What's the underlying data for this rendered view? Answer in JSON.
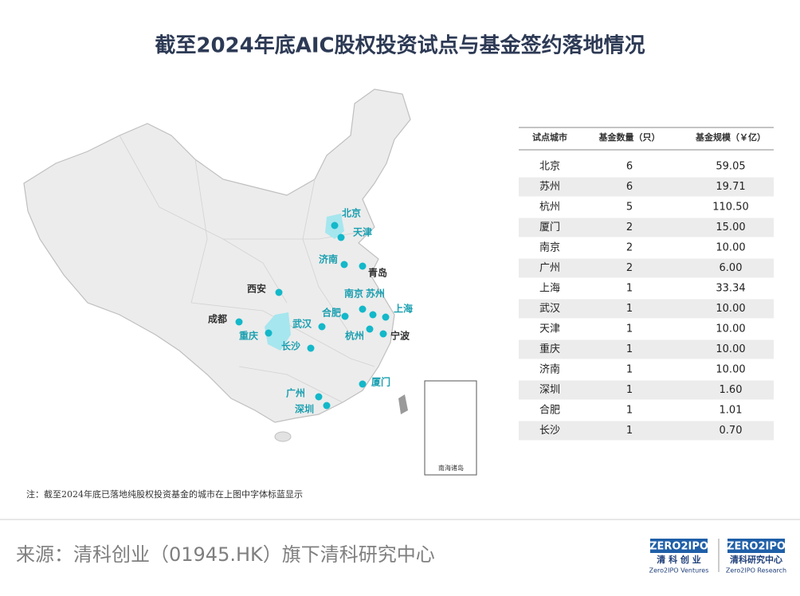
{
  "header": {
    "title": "截至2024年底AIC股权投资试点与基金签约落地情况"
  },
  "map": {
    "cities": [
      {
        "label": "北京",
        "highlight": true
      },
      {
        "label": "天津",
        "highlight": true
      },
      {
        "label": "济南",
        "highlight": true
      },
      {
        "label": "青岛",
        "highlight": false
      },
      {
        "label": "西安",
        "highlight": false
      },
      {
        "label": "南京",
        "highlight": true
      },
      {
        "label": "苏州",
        "highlight": true
      },
      {
        "label": "上海",
        "highlight": true
      },
      {
        "label": "合肥",
        "highlight": true
      },
      {
        "label": "成都",
        "highlight": false
      },
      {
        "label": "武汉",
        "highlight": true
      },
      {
        "label": "重庆",
        "highlight": true
      },
      {
        "label": "长沙",
        "highlight": true
      },
      {
        "label": "杭州",
        "highlight": true
      },
      {
        "label": "宁波",
        "highlight": false
      },
      {
        "label": "厦门",
        "highlight": true
      },
      {
        "label": "广州",
        "highlight": true
      },
      {
        "label": "深圳",
        "highlight": true
      }
    ],
    "inset_label": "南海诸岛"
  },
  "table": {
    "columns": [
      "试点城市",
      "基金数量（只）",
      "基金规模（￥亿）"
    ],
    "rows": [
      [
        "北京",
        "6",
        "59.05"
      ],
      [
        "苏州",
        "6",
        "19.71"
      ],
      [
        "杭州",
        "5",
        "110.50"
      ],
      [
        "厦门",
        "2",
        "15.00"
      ],
      [
        "南京",
        "2",
        "10.00"
      ],
      [
        "广州",
        "2",
        "6.00"
      ],
      [
        "上海",
        "1",
        "33.34"
      ],
      [
        "武汉",
        "1",
        "10.00"
      ],
      [
        "天津",
        "1",
        "10.00"
      ],
      [
        "重庆",
        "1",
        "10.00"
      ],
      [
        "济南",
        "1",
        "10.00"
      ],
      [
        "深圳",
        "1",
        "1.60"
      ],
      [
        "合肥",
        "1",
        "1.01"
      ],
      [
        "长沙",
        "1",
        "0.70"
      ]
    ]
  },
  "note": "注：截至2024年底已落地纯股权投资基金的城市在上图中字体标蓝显示",
  "footer": {
    "source": "来源：清科创业（01945.HK）旗下清科研究中心",
    "logo1": {
      "mark": "ZERO2IPO",
      "cn": "清 科 创 业",
      "en": "Zero2IPO Ventures"
    },
    "logo2": {
      "mark": "ZERO2IPO",
      "cn": "清科研究中心",
      "en": "Zero2IPO Research"
    }
  }
}
